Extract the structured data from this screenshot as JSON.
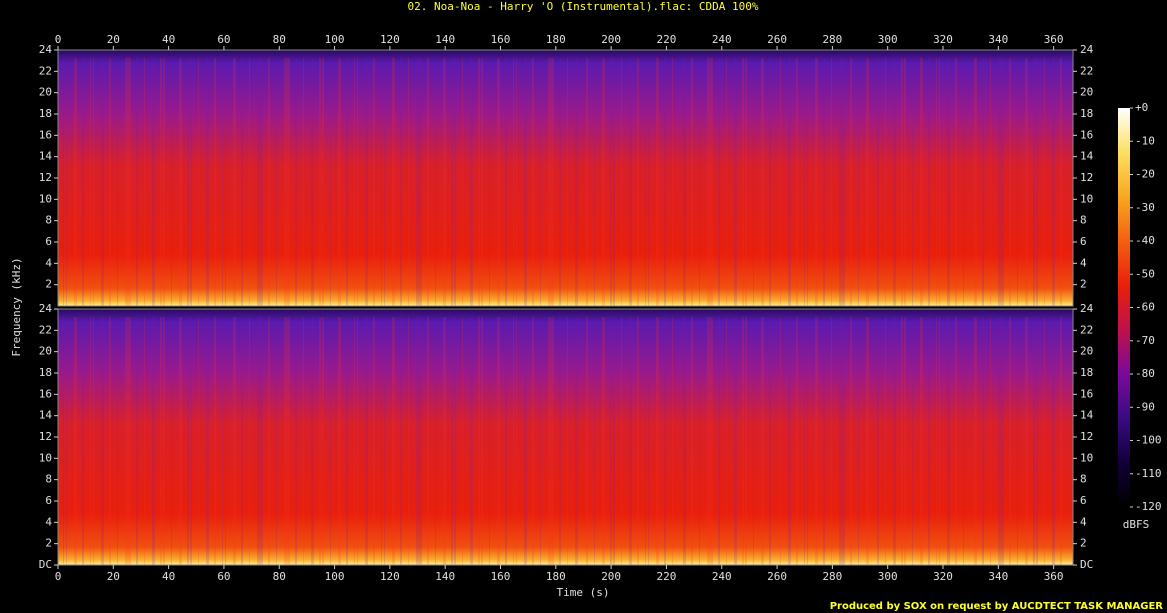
{
  "chart_data": {
    "type": "spectrogram",
    "title": "02. Noa-Noa - Harry 'O (Instrumental).flac: CDDA 100%",
    "xlabel": "Time (s)",
    "ylabel": "Frequency (kHz)",
    "footer": "Produced by SOX on request by AUCDTECT TASK MANAGER",
    "xlim": [
      0,
      367
    ],
    "xticks": [
      0,
      20,
      40,
      60,
      80,
      100,
      120,
      140,
      160,
      180,
      200,
      220,
      240,
      260,
      280,
      300,
      320,
      340,
      360
    ],
    "panels": [
      {
        "ylim": [
          0,
          24
        ],
        "yticks": [
          2,
          4,
          6,
          8,
          10,
          12,
          14,
          16,
          18,
          20,
          22,
          24
        ]
      },
      {
        "ylim": [
          0,
          24
        ],
        "yticks": [
          {
            "value": 0,
            "label": "DC"
          },
          2,
          4,
          6,
          8,
          10,
          12,
          14,
          16,
          18,
          20,
          22,
          24
        ]
      }
    ],
    "colorbar": {
      "label": "dBFS",
      "lim": [
        -120,
        0
      ],
      "ticks": [
        {
          "value": 0,
          "label": "+0"
        },
        -10,
        -20,
        -30,
        -40,
        -50,
        -60,
        -70,
        -80,
        -90,
        -100,
        -110,
        -120
      ],
      "colors": [
        "#000000",
        "#12003a",
        "#3a0a80",
        "#7a0a9a",
        "#c0104a",
        "#e8200c",
        "#f46010",
        "#f8a820",
        "#fce060",
        "#ffffff"
      ]
    }
  }
}
